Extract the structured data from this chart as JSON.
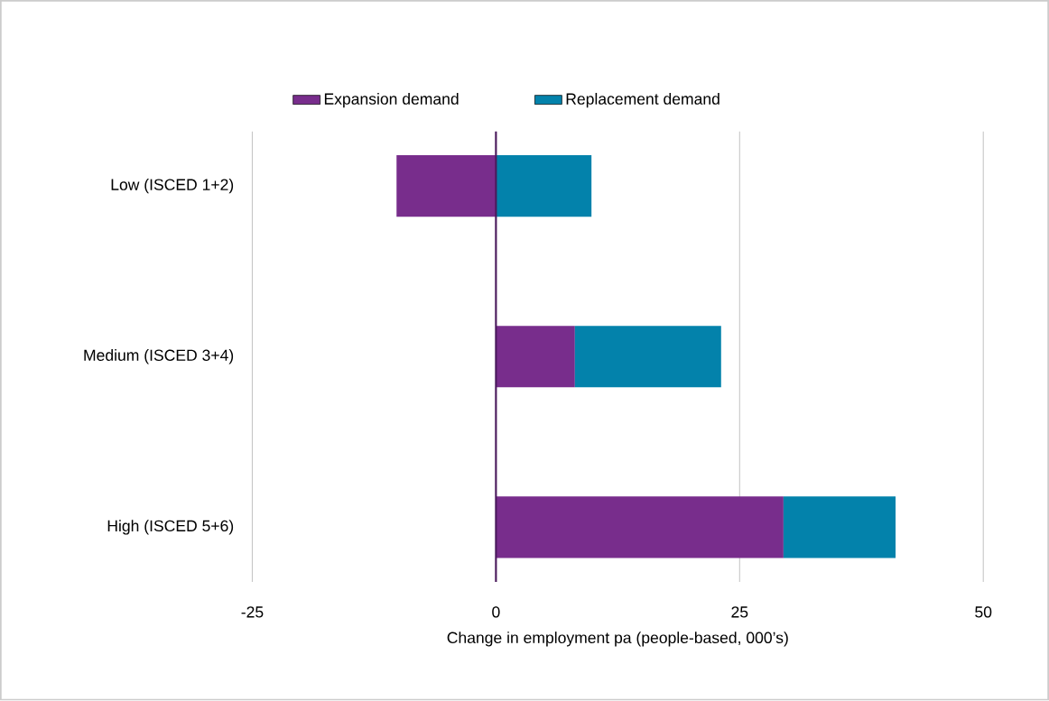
{
  "chart_data": {
    "type": "bar",
    "orientation": "horizontal",
    "stacked": true,
    "categories": [
      "Low (ISCED 1+2)",
      "Medium (ISCED 3+4)",
      "High (ISCED 5+6)"
    ],
    "series": [
      {
        "name": "Expansion demand",
        "color": "#782d8c",
        "values": [
          -10.2,
          8.1,
          29.5
        ]
      },
      {
        "name": "Replacement demand",
        "color": "#0382ab",
        "values": [
          9.8,
          15.0,
          11.5
        ]
      }
    ],
    "xlabel": "Change in employment pa (people-based, 000’s)",
    "xlim": [
      -25,
      50
    ],
    "xticks": [
      -25,
      0,
      25,
      50
    ],
    "grid": "x",
    "legend": "top"
  }
}
